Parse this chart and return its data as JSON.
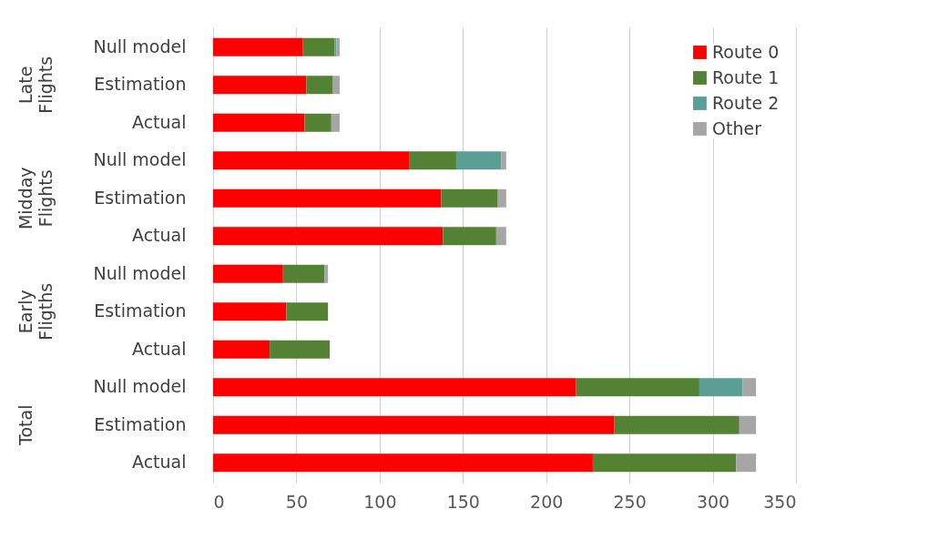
{
  "chart_data": {
    "type": "bar",
    "orientation": "horizontal",
    "stacked": true,
    "categories": [
      "Null model",
      "Estimation",
      "Actual",
      "Null model",
      "Estimation",
      "Actual",
      "Null model",
      "Estimation",
      "Actual",
      "Null model",
      "Estimation",
      "Actual"
    ],
    "series": [
      {
        "name": "Route 0",
        "color": "#ff0000",
        "values": [
          54,
          56,
          55,
          118,
          137,
          138,
          42,
          44,
          34,
          218,
          241,
          228
        ]
      },
      {
        "name": "Route 1",
        "color": "#548235",
        "values": [
          19,
          16,
          16,
          28,
          34,
          32,
          25,
          25,
          36,
          74,
          75,
          86
        ]
      },
      {
        "name": "Route 2",
        "color": "#5b9e96",
        "values": [
          1,
          0,
          0,
          27,
          0,
          0,
          0,
          0,
          0,
          26,
          0,
          0
        ]
      },
      {
        "name": "Other",
        "color": "#a6a6a6",
        "values": [
          2,
          4,
          5,
          3,
          5,
          6,
          2,
          0,
          0,
          8,
          10,
          12
        ]
      }
    ],
    "annotations": [
      "Late Flights",
      "Midday Flights",
      "Early Fligths",
      "Total"
    ],
    "xlim": [
      0,
      350
    ],
    "xticks": [
      0,
      50,
      100,
      150,
      200,
      250,
      300,
      350
    ],
    "grid": "x",
    "legend": "top right"
  }
}
